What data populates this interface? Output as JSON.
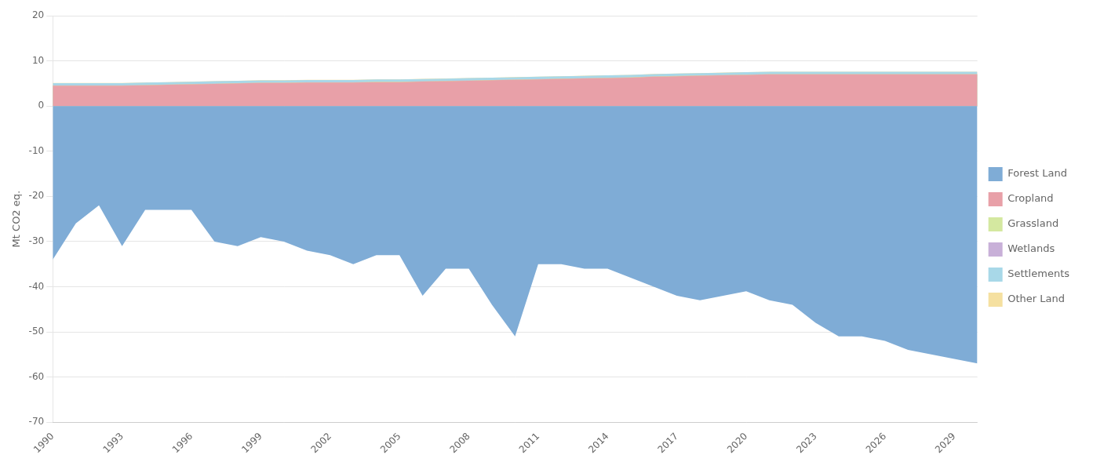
{
  "chart_data": {
    "type": "area",
    "stacked": true,
    "x": [
      1990,
      1991,
      1992,
      1993,
      1994,
      1995,
      1996,
      1997,
      1998,
      1999,
      2000,
      2001,
      2002,
      2003,
      2004,
      2005,
      2006,
      2007,
      2008,
      2009,
      2010,
      2011,
      2012,
      2013,
      2014,
      2015,
      2016,
      2017,
      2018,
      2019,
      2020,
      2021,
      2022,
      2023,
      2024,
      2025,
      2026,
      2027,
      2028,
      2029,
      2030
    ],
    "series": [
      {
        "name": "Forest Land",
        "color": "#7facd6",
        "values": [
          -34,
          -26,
          -22,
          -31,
          -23,
          -23,
          -23,
          -30,
          -31,
          -29,
          -30,
          -32,
          -33,
          -35,
          -33,
          -33,
          -42,
          -36,
          -36,
          -44,
          -51,
          -35,
          -35,
          -36,
          -36,
          -38,
          -40,
          -42,
          -43,
          -42,
          -41,
          -43,
          -44,
          -48,
          -51,
          -51,
          -52,
          -54,
          -55,
          -56,
          -57
        ]
      },
      {
        "name": "Cropland",
        "color": "#e8a0a8",
        "values": [
          4.5,
          4.5,
          4.5,
          4.5,
          4.6,
          4.7,
          4.8,
          4.9,
          5.0,
          5.1,
          5.1,
          5.2,
          5.2,
          5.2,
          5.3,
          5.3,
          5.4,
          5.5,
          5.6,
          5.7,
          5.8,
          5.9,
          6.0,
          6.1,
          6.2,
          6.3,
          6.5,
          6.6,
          6.7,
          6.8,
          6.9,
          7.0,
          7.0,
          7.0,
          7.0,
          7.0,
          7.0,
          7.0,
          7.0,
          7.0,
          7.0
        ]
      },
      {
        "name": "Grassland",
        "color": "#d4e8a0",
        "values": [
          0.05,
          0.05,
          0.05,
          0.05,
          0.05,
          0.05,
          0.05,
          0.05,
          0.05,
          0.05,
          0.05,
          0.05,
          0.05,
          0.05,
          0.05,
          0.05,
          0.05,
          0.05,
          0.05,
          0.05,
          0.05,
          0.05,
          0.05,
          0.05,
          0.05,
          0.05,
          0.05,
          0.05,
          0.05,
          0.05,
          0.05,
          0.05,
          0.05,
          0.05,
          0.05,
          0.05,
          0.05,
          0.05,
          0.05,
          0.05,
          0.05
        ]
      },
      {
        "name": "Wetlands",
        "color": "#c8b0d8",
        "values": [
          0.03,
          0.03,
          0.03,
          0.03,
          0.03,
          0.03,
          0.03,
          0.03,
          0.03,
          0.03,
          0.03,
          0.03,
          0.03,
          0.03,
          0.03,
          0.03,
          0.03,
          0.03,
          0.03,
          0.03,
          0.03,
          0.03,
          0.03,
          0.03,
          0.03,
          0.03,
          0.03,
          0.03,
          0.03,
          0.03,
          0.03,
          0.03,
          0.03,
          0.03,
          0.03,
          0.03,
          0.03,
          0.03,
          0.03,
          0.03,
          0.03
        ]
      },
      {
        "name": "Settlements",
        "color": "#a8d8e8",
        "values": [
          0.5,
          0.5,
          0.5,
          0.5,
          0.5,
          0.5,
          0.5,
          0.5,
          0.5,
          0.5,
          0.5,
          0.5,
          0.5,
          0.5,
          0.5,
          0.5,
          0.5,
          0.5,
          0.5,
          0.5,
          0.5,
          0.5,
          0.5,
          0.5,
          0.5,
          0.5,
          0.5,
          0.5,
          0.5,
          0.5,
          0.5,
          0.5,
          0.5,
          0.5,
          0.5,
          0.5,
          0.5,
          0.5,
          0.5,
          0.5,
          0.5
        ]
      },
      {
        "name": "Other Land",
        "color": "#f5e0a0",
        "values": [
          0.02,
          0.02,
          0.02,
          0.02,
          0.02,
          0.02,
          0.02,
          0.02,
          0.02,
          0.02,
          0.02,
          0.02,
          0.02,
          0.02,
          0.02,
          0.02,
          0.02,
          0.02,
          0.02,
          0.02,
          0.02,
          0.02,
          0.02,
          0.02,
          0.02,
          0.02,
          0.02,
          0.02,
          0.02,
          0.02,
          0.02,
          0.02,
          0.02,
          0.02,
          0.02,
          0.02,
          0.02,
          0.02,
          0.02,
          0.02,
          0.02
        ]
      }
    ],
    "ylabel": "Mt CO2 eq.",
    "xlim": [
      1990,
      2030
    ],
    "ylim": [
      -70,
      20
    ],
    "xticks": [
      1990,
      1993,
      1996,
      1999,
      2002,
      2005,
      2008,
      2011,
      2014,
      2017,
      2020,
      2023,
      2026,
      2029
    ],
    "yticks": [
      -70,
      -60,
      -50,
      -40,
      -30,
      -20,
      -10,
      0,
      10,
      20
    ],
    "grid": true,
    "legend": "right"
  }
}
